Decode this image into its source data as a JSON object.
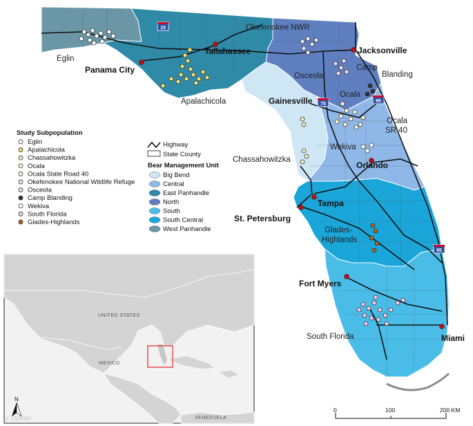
{
  "colors": {
    "big_bend": "#cfe6f5",
    "central": "#8fb8e8",
    "east_panhandle": "#2f8aa8",
    "north": "#5f7fc0",
    "south": "#49bde8",
    "south_central": "#1aa6d9",
    "west_panhandle": "#6b96a6",
    "water": "#ffffff",
    "highway": "#111111",
    "city_dot": "#b3141b",
    "inset_land": "#d4d4d4",
    "inset_water": "#f2f2f2",
    "extent_box": "#e3272b"
  },
  "cities": {
    "tallahassee": "Tallahassee",
    "jacksonville": "Jacksonville",
    "panama_city": "Panama City",
    "gainesville": "Gainesville",
    "orlando": "Orlando",
    "tampa": "Tampa",
    "st_petersburg": "St. Petersburg",
    "fort_myers": "Fort Myers",
    "miami": "Miami"
  },
  "regions": {
    "eglin": "Eglin",
    "okefenokee": "Okefenokee NWR",
    "apalachicola": "Apalachicola",
    "osceola": "Osceola",
    "camp": "Camp",
    "blanding": "Blanding",
    "ocala": "Ocala",
    "ocala_sr": "Ocala",
    "sr40": "SR 40",
    "wekiva": "Wekiva",
    "chassahowitzka": "Chassahowitzka",
    "glades": "Glades-",
    "highlands": "Highlands",
    "south_florida": "South Florida"
  },
  "shields": {
    "i10": "10",
    "i75": "75",
    "i95_north": "95",
    "i95_south": "95"
  },
  "legend": {
    "subpop_title": "Study Subpopulation",
    "subpops": [
      {
        "label": "Eglin",
        "color": "#ffffff"
      },
      {
        "label": "Apalachicola",
        "color": "#f4e07a"
      },
      {
        "label": "Chassahowitzka",
        "color": "#f2e8c0"
      },
      {
        "label": "Ocala",
        "color": "#fff6d8"
      },
      {
        "label": "Ocala State Road 40",
        "color": "#f7f3e6"
      },
      {
        "label": "Okefenokee National Wildlife Refuge",
        "color": "#ede8f2"
      },
      {
        "label": "Osceola",
        "color": "#f5ddef"
      },
      {
        "label": "Camp Blanding",
        "color": "#333333"
      },
      {
        "label": "Wekiva",
        "color": "#ffffff"
      },
      {
        "label": "South Florida",
        "color": "#f4cbe6"
      },
      {
        "label": "Glades-Highlands",
        "color": "#b5651d"
      }
    ],
    "highway": "Highway",
    "state_county": "State County",
    "bmu_title": "Bear Management Unit",
    "bmus": [
      {
        "label": "Big Bend",
        "color": "#cfe6f5"
      },
      {
        "label": "Central",
        "color": "#8fb8e8"
      },
      {
        "label": "East Panhandle",
        "color": "#2f8aa8"
      },
      {
        "label": "North",
        "color": "#5f7fc0"
      },
      {
        "label": "South",
        "color": "#49bde8"
      },
      {
        "label": "South Central",
        "color": "#1aa6d9"
      },
      {
        "label": "West Panhandle",
        "color": "#6b96a6"
      }
    ]
  },
  "inset": {
    "united_states": "UNITED STATES",
    "mexico": "MEXICO",
    "venezuela": "VENEZUELA",
    "ocean": "c Ocean",
    "north": "N"
  },
  "scale": {
    "zero": "0",
    "mid": "100",
    "end": "200 KM"
  }
}
